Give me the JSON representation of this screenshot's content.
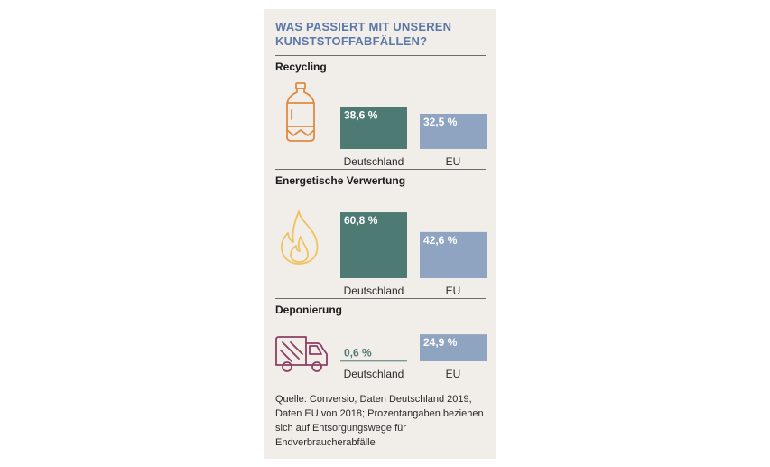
{
  "title": "WAS PASSIERT MIT UNSEREN KUNSTSTOFFABFÄLLEN?",
  "colors": {
    "deutschland": "#4e7a74",
    "eu": "#8fa4c0",
    "panel": "#f1ede9",
    "title": "#5b78a8"
  },
  "chart_data": [
    {
      "type": "bar",
      "title": "Recycling",
      "icon": "plastic-bottle-icon",
      "categories": [
        "Deutschland",
        "EU"
      ],
      "values": [
        38.6,
        32.5
      ],
      "value_labels": [
        "38,6 %",
        "32,5 %"
      ],
      "unit": "%"
    },
    {
      "type": "bar",
      "title": "Energetische Verwertung",
      "icon": "flame-icon",
      "categories": [
        "Deutschland",
        "EU"
      ],
      "values": [
        60.8,
        42.6
      ],
      "value_labels": [
        "60,8 %",
        "42,6 %"
      ],
      "unit": "%"
    },
    {
      "type": "bar",
      "title": "Deponierung",
      "icon": "garbage-truck-icon",
      "categories": [
        "Deutschland",
        "EU"
      ],
      "values": [
        0.6,
        24.9
      ],
      "value_labels": [
        "0,6 %",
        "24,9 %"
      ],
      "unit": "%"
    }
  ],
  "note": "Quelle: Conversio, Daten Deutschland 2019, Daten EU von 2018; Prozentangaben beziehen sich auf Entsorgungswege für Endverbraucherabfälle"
}
